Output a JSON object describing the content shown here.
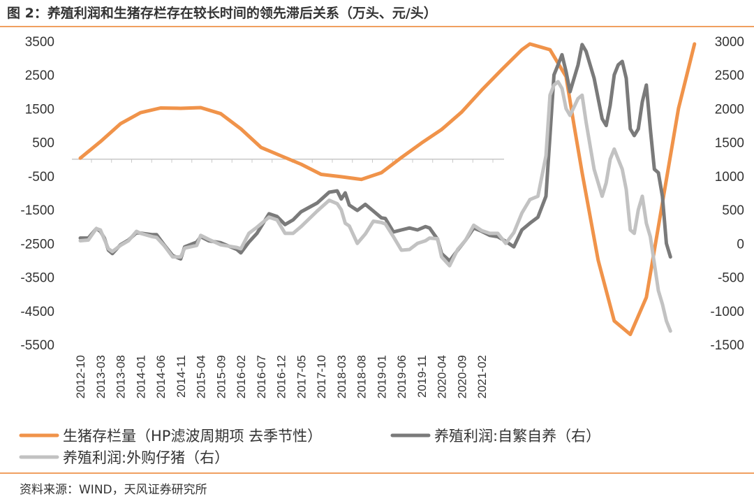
{
  "figure": {
    "title": "图 2：养殖利润和生猪存栏存在较长时间的领先滞后关系（万头、元/头）",
    "source": "资料来源：WIND，天风证券研究所"
  },
  "chart_data": {
    "type": "line",
    "title": "图 2：养殖利润和生猪存栏存在较长时间的领先滞后关系（万头、元/头）",
    "y_left": {
      "min": -5500,
      "max": 3500,
      "ticks": [
        "3500",
        "2500",
        "1500",
        "500",
        "-500",
        "-1500",
        "-2500",
        "-3500",
        "-4500",
        "-5500"
      ]
    },
    "y_right": {
      "min": -1500,
      "max": 3000,
      "ticks": [
        "3000",
        "2500",
        "2000",
        "1500",
        "1000",
        "500",
        "0",
        "-500",
        "-1000",
        "-1500"
      ]
    },
    "x_tick_labels": [
      "2012-10",
      "2013-03",
      "2013-08",
      "2014-01",
      "2014-06",
      "2014-11",
      "2015-04",
      "2015-09",
      "2016-02",
      "2016-07",
      "2016-12",
      "2017-05",
      "2017-10",
      "2018-03",
      "2018-08",
      "2019-01",
      "2019-06",
      "2019-11",
      "2020-04",
      "2020-09",
      "2021-02"
    ],
    "x_start_index": 0,
    "x_tick_step": 5,
    "series": [
      {
        "name": "生猪存栏量（HP滤波周期项 去季节性）",
        "axis": "left",
        "color": "#f0934a",
        "points": [
          [
            0,
            30
          ],
          [
            5,
            520
          ],
          [
            10,
            1050
          ],
          [
            15,
            1380
          ],
          [
            20,
            1520
          ],
          [
            25,
            1510
          ],
          [
            30,
            1530
          ],
          [
            35,
            1350
          ],
          [
            40,
            900
          ],
          [
            45,
            350
          ],
          [
            50,
            100
          ],
          [
            55,
            -150
          ],
          [
            60,
            -450
          ],
          [
            65,
            -520
          ],
          [
            70,
            -600
          ],
          [
            75,
            -400
          ],
          [
            80,
            50
          ],
          [
            85,
            480
          ],
          [
            90,
            880
          ],
          [
            95,
            1400
          ],
          [
            100,
            2050
          ],
          [
            105,
            2660
          ],
          [
            110,
            3250
          ],
          [
            112,
            3420
          ],
          [
            117,
            3250
          ],
          [
            121,
            2450
          ],
          [
            123,
            1000
          ],
          [
            125,
            -400
          ],
          [
            129,
            -3000
          ],
          [
            133,
            -4800
          ],
          [
            137,
            -5200
          ],
          [
            141,
            -4100
          ],
          [
            145,
            -1300
          ],
          [
            149,
            1500
          ],
          [
            153,
            3420
          ]
        ]
      },
      {
        "name": "养殖利润:自繁自养（右）",
        "axis": "right",
        "color": "#7a7a7a",
        "points": [
          [
            0,
            80
          ],
          [
            2,
            80
          ],
          [
            4,
            220
          ],
          [
            5,
            180
          ],
          [
            6,
            80
          ],
          [
            7,
            -100
          ],
          [
            8,
            -150
          ],
          [
            10,
            -20
          ],
          [
            12,
            50
          ],
          [
            14,
            160
          ],
          [
            18,
            130
          ],
          [
            19,
            130
          ],
          [
            21,
            -30
          ],
          [
            23,
            -180
          ],
          [
            25,
            -230
          ],
          [
            26,
            -50
          ],
          [
            29,
            20
          ],
          [
            30,
            100
          ],
          [
            32,
            40
          ],
          [
            35,
            10
          ],
          [
            39,
            -90
          ],
          [
            40,
            -140
          ],
          [
            42,
            20
          ],
          [
            44,
            150
          ],
          [
            47,
            440
          ],
          [
            49,
            400
          ],
          [
            51,
            280
          ],
          [
            53,
            350
          ],
          [
            55,
            470
          ],
          [
            59,
            600
          ],
          [
            62,
            760
          ],
          [
            64,
            780
          ],
          [
            65,
            660
          ],
          [
            66,
            750
          ],
          [
            67,
            570
          ],
          [
            69,
            490
          ],
          [
            71,
            580
          ],
          [
            73,
            480
          ],
          [
            75,
            380
          ],
          [
            76,
            370
          ],
          [
            78,
            170
          ],
          [
            80,
            200
          ],
          [
            82,
            230
          ],
          [
            84,
            200
          ],
          [
            86,
            250
          ],
          [
            87,
            230
          ],
          [
            89,
            60
          ],
          [
            90,
            -150
          ],
          [
            92,
            -260
          ],
          [
            94,
            -100
          ],
          [
            96,
            50
          ],
          [
            98,
            230
          ],
          [
            100,
            180
          ],
          [
            102,
            120
          ],
          [
            104,
            100
          ],
          [
            106,
            30
          ],
          [
            108,
            -50
          ],
          [
            110,
            200
          ],
          [
            112,
            300
          ],
          [
            114,
            390
          ],
          [
            116,
            700
          ],
          [
            117,
            1600
          ],
          [
            118,
            2500
          ],
          [
            119,
            2650
          ],
          [
            120,
            2800
          ],
          [
            121,
            2550
          ],
          [
            122,
            2250
          ],
          [
            124,
            2650
          ],
          [
            125,
            2950
          ],
          [
            126,
            2850
          ],
          [
            128,
            2450
          ],
          [
            130,
            1850
          ],
          [
            131,
            1750
          ],
          [
            132,
            2050
          ],
          [
            133,
            2500
          ],
          [
            134,
            2650
          ],
          [
            135,
            2700
          ],
          [
            136,
            2450
          ],
          [
            137,
            1700
          ],
          [
            138,
            1600
          ],
          [
            139,
            1700
          ],
          [
            140,
            2100
          ],
          [
            141,
            2350
          ],
          [
            142,
            1700
          ],
          [
            143,
            1100
          ],
          [
            144,
            1050
          ],
          [
            145,
            700
          ],
          [
            146,
            0
          ],
          [
            147,
            -200
          ]
        ]
      },
      {
        "name": "养殖利润:外购仔猪（右）",
        "axis": "right",
        "color": "#c2c2c2",
        "points": [
          [
            0,
            40
          ],
          [
            2,
            50
          ],
          [
            4,
            220
          ],
          [
            5,
            200
          ],
          [
            6,
            60
          ],
          [
            7,
            -80
          ],
          [
            8,
            -120
          ],
          [
            10,
            -30
          ],
          [
            12,
            40
          ],
          [
            14,
            180
          ],
          [
            15,
            150
          ],
          [
            18,
            100
          ],
          [
            19,
            90
          ],
          [
            21,
            -40
          ],
          [
            23,
            -200
          ],
          [
            25,
            -200
          ],
          [
            26,
            -70
          ],
          [
            29,
            -30
          ],
          [
            30,
            120
          ],
          [
            32,
            60
          ],
          [
            35,
            -20
          ],
          [
            39,
            -60
          ],
          [
            40,
            -80
          ],
          [
            42,
            150
          ],
          [
            44,
            240
          ],
          [
            47,
            390
          ],
          [
            49,
            350
          ],
          [
            51,
            150
          ],
          [
            53,
            150
          ],
          [
            55,
            250
          ],
          [
            59,
            480
          ],
          [
            62,
            640
          ],
          [
            64,
            590
          ],
          [
            65,
            500
          ],
          [
            66,
            300
          ],
          [
            67,
            260
          ],
          [
            69,
            0
          ],
          [
            71,
            140
          ],
          [
            73,
            330
          ],
          [
            75,
            310
          ],
          [
            76,
            290
          ],
          [
            78,
            100
          ],
          [
            80,
            -100
          ],
          [
            82,
            -90
          ],
          [
            84,
            0
          ],
          [
            86,
            40
          ],
          [
            87,
            80
          ],
          [
            89,
            70
          ],
          [
            90,
            -200
          ],
          [
            92,
            -330
          ],
          [
            94,
            -90
          ],
          [
            96,
            50
          ],
          [
            98,
            270
          ],
          [
            100,
            190
          ],
          [
            102,
            150
          ],
          [
            104,
            150
          ],
          [
            106,
            0
          ],
          [
            108,
            160
          ],
          [
            110,
            450
          ],
          [
            112,
            650
          ],
          [
            114,
            700
          ],
          [
            116,
            1300
          ],
          [
            117,
            2200
          ],
          [
            118,
            2350
          ],
          [
            119,
            2400
          ],
          [
            120,
            2300
          ],
          [
            121,
            2000
          ],
          [
            122,
            1900
          ],
          [
            124,
            2150
          ],
          [
            125,
            2200
          ],
          [
            126,
            1800
          ],
          [
            128,
            1100
          ],
          [
            130,
            700
          ],
          [
            131,
            900
          ],
          [
            132,
            1250
          ],
          [
            133,
            1400
          ],
          [
            134,
            1250
          ],
          [
            135,
            1100
          ],
          [
            136,
            800
          ],
          [
            137,
            200
          ],
          [
            138,
            150
          ],
          [
            139,
            500
          ],
          [
            140,
            700
          ],
          [
            141,
            300
          ],
          [
            142,
            100
          ],
          [
            143,
            -300
          ],
          [
            144,
            -700
          ],
          [
            145,
            -900
          ],
          [
            146,
            -1150
          ],
          [
            147,
            -1300
          ]
        ]
      }
    ],
    "legend": {
      "position": "bottom"
    }
  }
}
